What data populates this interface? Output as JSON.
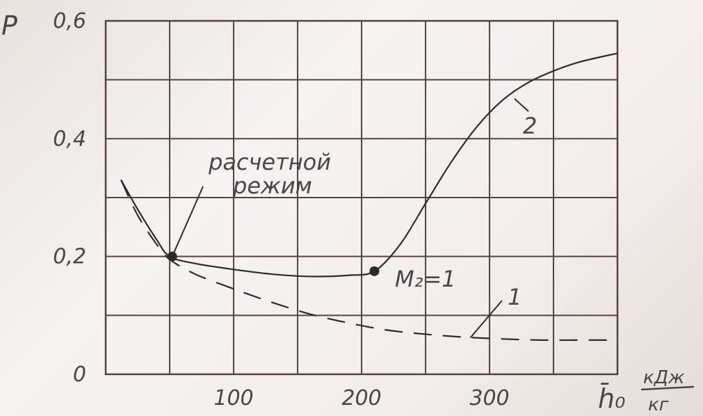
{
  "chart_data": {
    "type": "line",
    "ylabel": "P",
    "xlabel": "h̄₀",
    "xunit_numerator": "кДж",
    "xunit_denominator": "кг",
    "xlim": [
      0,
      400
    ],
    "ylim": [
      0,
      0.6
    ],
    "x_ticks": [
      {
        "value": 100,
        "label": "100"
      },
      {
        "value": 200,
        "label": "200"
      },
      {
        "value": 300,
        "label": "300"
      }
    ],
    "y_ticks": [
      {
        "value": 0,
        "label": "0"
      },
      {
        "value": 0.2,
        "label": "0,2"
      },
      {
        "value": 0.4,
        "label": "0,4"
      },
      {
        "value": 0.6,
        "label": "0,6"
      }
    ],
    "grid": true,
    "series": [
      {
        "name": "1",
        "style": "dashed",
        "x": [
          12,
          25,
          40,
          50,
          70,
          100,
          130,
          160,
          190,
          220,
          250,
          280,
          310,
          340,
          370,
          400
        ],
        "y": [
          0.33,
          0.27,
          0.22,
          0.195,
          0.17,
          0.145,
          0.122,
          0.102,
          0.087,
          0.075,
          0.068,
          0.063,
          0.06,
          0.058,
          0.058,
          0.058
        ]
      },
      {
        "name": "2",
        "style": "solid",
        "x": [
          12,
          25,
          40,
          50,
          70,
          100,
          130,
          160,
          190,
          210,
          230,
          250,
          270,
          290,
          310,
          330,
          350,
          370,
          400
        ],
        "y": [
          0.33,
          0.28,
          0.228,
          0.2,
          0.188,
          0.178,
          0.17,
          0.166,
          0.168,
          0.175,
          0.22,
          0.29,
          0.36,
          0.42,
          0.465,
          0.495,
          0.515,
          0.53,
          0.545
        ]
      }
    ],
    "marked_points": [
      {
        "x": 52,
        "y": 0.2
      },
      {
        "x": 210,
        "y": 0.175
      }
    ],
    "annotations": [
      {
        "text_line1": "расчетной",
        "text_line2": "режим",
        "points_to_x": 52,
        "points_to_y": 0.2
      },
      {
        "text": "M₂=1",
        "near_x": 210,
        "near_y": 0.175
      }
    ]
  }
}
